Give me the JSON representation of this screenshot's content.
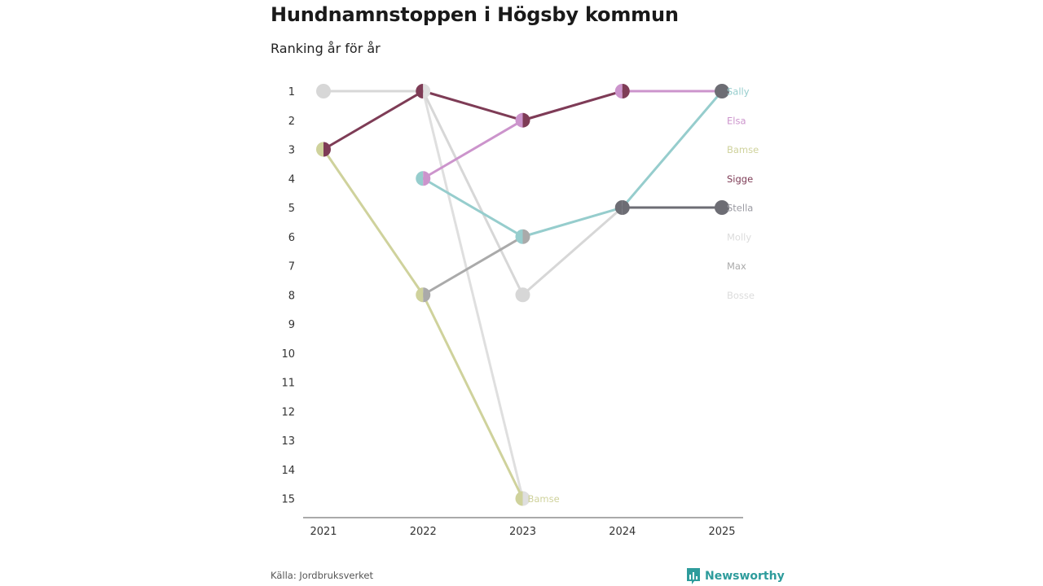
{
  "title": "Hundnamnstoppen i Högsby kommun",
  "subtitle": "Ranking år för år",
  "source": "Källa: Jordbruksverket",
  "brand": "Newsworthy",
  "chart_data": {
    "type": "line",
    "chart_kind": "bump",
    "x": [
      2021,
      2022,
      2023,
      2024,
      2025
    ],
    "y_ticks": [
      1,
      2,
      3,
      4,
      5,
      6,
      7,
      8,
      9,
      10,
      11,
      12,
      13,
      14,
      15
    ],
    "ylim": [
      1,
      15
    ],
    "y_inverted": true,
    "series": [
      {
        "name": "Sally",
        "color": "#96cdcd",
        "points": [
          [
            2022,
            4
          ],
          [
            2023,
            6
          ],
          [
            2024,
            5
          ],
          [
            2025,
            1
          ]
        ]
      },
      {
        "name": "Elsa",
        "color": "#cc94cc",
        "points": [
          [
            2022,
            4
          ],
          [
            2023,
            2
          ],
          [
            2024,
            1
          ],
          [
            2025,
            1
          ]
        ]
      },
      {
        "name": "Bamse",
        "color": "#cfd29c",
        "points": [
          [
            2021,
            3
          ],
          [
            2022,
            8
          ],
          [
            2023,
            15
          ]
        ]
      },
      {
        "name": "Sigge",
        "color": "#7e3c56",
        "points": [
          [
            2021,
            3
          ],
          [
            2022,
            1
          ],
          [
            2023,
            2
          ],
          [
            2024,
            1
          ]
        ]
      },
      {
        "name": "Stella",
        "color": "#6d6d74",
        "points": [
          [
            2024,
            5
          ],
          [
            2025,
            5
          ]
        ]
      },
      {
        "name": "Molly",
        "color": "#d7d7d7",
        "points": [
          [
            2021,
            1
          ],
          [
            2022,
            1
          ],
          [
            2023,
            8
          ],
          [
            2024,
            5
          ],
          [
            2025,
            5
          ]
        ]
      },
      {
        "name": "Max",
        "color": "#aaaaaa",
        "points": [
          [
            2022,
            8
          ],
          [
            2023,
            6
          ]
        ]
      },
      {
        "name": "Bosse",
        "color": "#dfdfdf",
        "points": [
          [
            2022,
            1
          ],
          [
            2023,
            15
          ]
        ]
      }
    ],
    "legend": [
      {
        "name": "Sally",
        "color": "#96cdcd"
      },
      {
        "name": "Elsa",
        "color": "#cc94cc"
      },
      {
        "name": "Bamse",
        "color": "#cfd29c"
      },
      {
        "name": "Sigge",
        "color": "#7e3c56"
      },
      {
        "name": "Stella",
        "color": "#9a9aa2"
      },
      {
        "name": "Molly",
        "color": "#dcdcdc"
      },
      {
        "name": "Max",
        "color": "#aaaaaa"
      },
      {
        "name": "Bosse",
        "color": "#dcdcdc"
      }
    ],
    "annotations": [
      {
        "text": "Bamse",
        "x": 2023,
        "y": 15,
        "color": "#cfd29c"
      }
    ],
    "markers": [
      {
        "x": 2021,
        "y": 1,
        "left": "#d7d7d7",
        "right": "#d7d7d7"
      },
      {
        "x": 2021,
        "y": 3,
        "left": "#cfd29c",
        "right": "#7e3c56"
      },
      {
        "x": 2022,
        "y": 1,
        "left": "#7e3c56",
        "right": "#dfdfdf"
      },
      {
        "x": 2022,
        "y": 4,
        "left": "#96cdcd",
        "right": "#cc94cc"
      },
      {
        "x": 2022,
        "y": 8,
        "left": "#cfd29c",
        "right": "#aaaaaa"
      },
      {
        "x": 2023,
        "y": 2,
        "left": "#cc94cc",
        "right": "#7e3c56"
      },
      {
        "x": 2023,
        "y": 6,
        "left": "#96cdcd",
        "right": "#aaaaaa"
      },
      {
        "x": 2023,
        "y": 8,
        "left": "#d7d7d7",
        "right": "#d7d7d7"
      },
      {
        "x": 2023,
        "y": 15,
        "left": "#cfd29c",
        "right": "#dfdfdf"
      },
      {
        "x": 2024,
        "y": 1,
        "left": "#cc94cc",
        "right": "#7e3c56"
      },
      {
        "x": 2024,
        "y": 5,
        "left": "#6d6d74",
        "right": "#6d6d74"
      },
      {
        "x": 2025,
        "y": 1,
        "left": "#6d6d74",
        "right": "#6d6d74"
      },
      {
        "x": 2025,
        "y": 5,
        "left": "#6d6d74",
        "right": "#6d6d74"
      }
    ]
  }
}
